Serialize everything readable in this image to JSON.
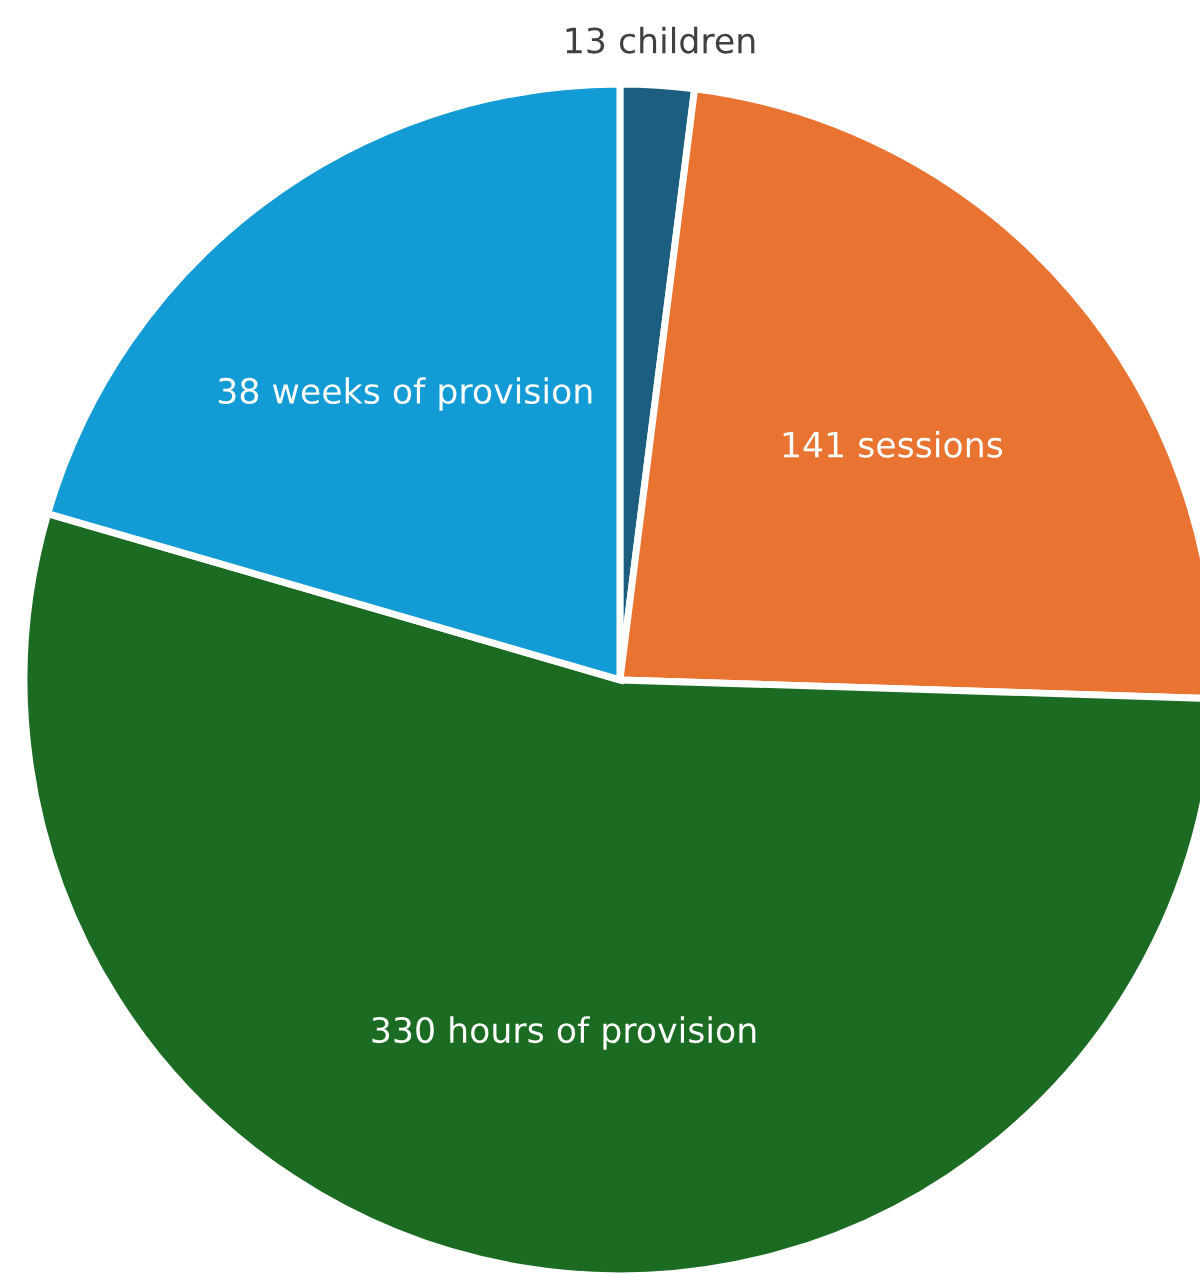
{
  "chart_data": {
    "type": "pie",
    "categories": [
      "13 children",
      "141 sessions",
      "330 hours of provision",
      "38 weeks of provision"
    ],
    "values": [
      2,
      23.5,
      54,
      20.5
    ],
    "colors": [
      "#1b5e80",
      "#e97432",
      "#1b6b23",
      "#139bd5"
    ]
  }
}
